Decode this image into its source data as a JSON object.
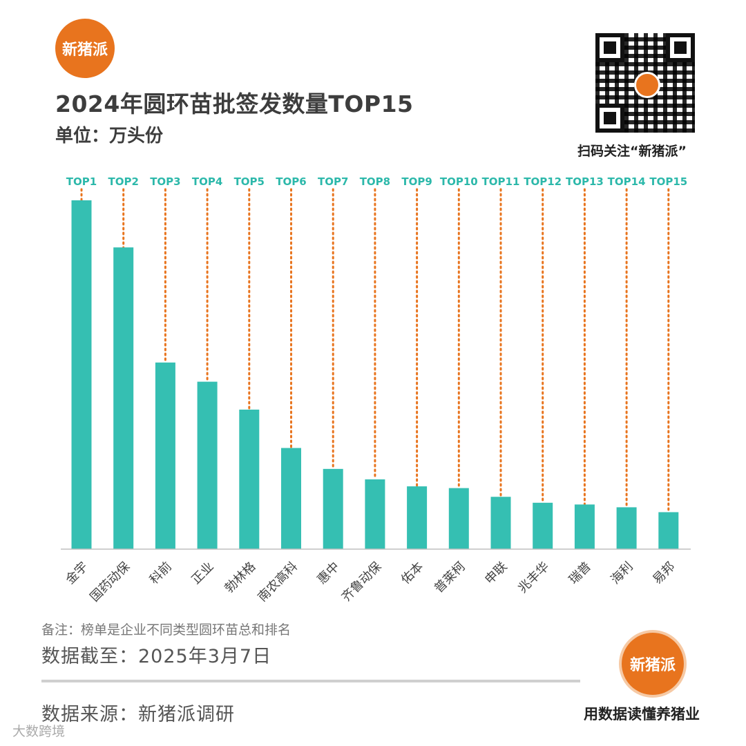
{
  "brand": {
    "logo_text": "新猪派",
    "qr_caption": "扫码关注“新猪派”",
    "slogan": "用数据读懂养猪业",
    "watermark_corner": "大数跨境"
  },
  "colors": {
    "bar": "#35bfb2",
    "accent": "#e8741e",
    "top_label": "#2cb8aa",
    "guide": "#e8741e"
  },
  "footer": {
    "note": "备注：榜单是企业不同类型圆环苗总和排名",
    "cutoff": "数据截至：2025年3月7日",
    "source": "数据来源：新猪派调研"
  },
  "chart_data": {
    "type": "bar",
    "title": "2024年圆环苗批签发数量TOP15",
    "subtitle": "单位：万头份",
    "categories": [
      "金宇",
      "国药动保",
      "科前",
      "正业",
      "勃林格",
      "南农高科",
      "惠中",
      "齐鲁动保",
      "佑本",
      "普莱柯",
      "申联",
      "兆丰华",
      "瑞普",
      "海利",
      "易邦"
    ],
    "rank_labels": [
      "TOP1",
      "TOP2",
      "TOP3",
      "TOP4",
      "TOP5",
      "TOP6",
      "TOP7",
      "TOP8",
      "TOP9",
      "TOP10",
      "TOP11",
      "TOP12",
      "TOP13",
      "TOP14",
      "TOP15"
    ],
    "values": [
      100,
      86.5,
      53.5,
      48,
      40,
      29,
      23,
      20,
      18,
      17.5,
      15,
      13.3,
      12.8,
      12,
      10.6
    ],
    "ylim": [
      0,
      100
    ],
    "grid": false,
    "legend": "none"
  }
}
